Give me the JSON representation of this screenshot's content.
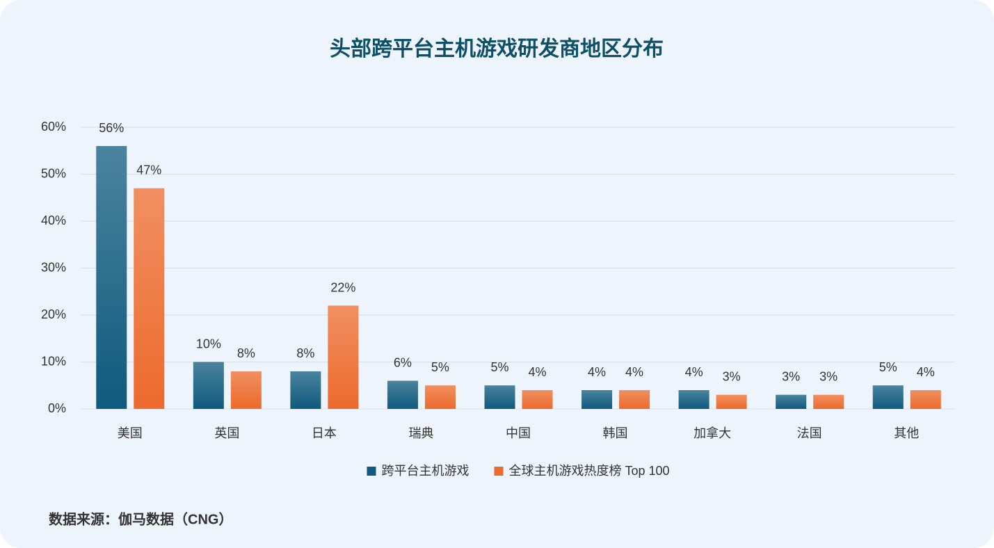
{
  "chart_data": {
    "type": "bar",
    "title": "头部跨平台主机游戏研发商地区分布",
    "categories": [
      "美国",
      "英国",
      "日本",
      "瑞典",
      "中国",
      "韩国",
      "加拿大",
      "法国",
      "其他"
    ],
    "series": [
      {
        "name": "跨平台主机游戏",
        "color": "#0f5a7e",
        "values": [
          56,
          10,
          8,
          6,
          5,
          4,
          4,
          3,
          5
        ],
        "value_labels": [
          "56%",
          "10%",
          "8%",
          "6%",
          "5%",
          "4%",
          "4%",
          "3%",
          "5%"
        ]
      },
      {
        "name": "全球主机游戏热度榜 Top 100",
        "color": "#ec6a2c",
        "values": [
          47,
          8,
          22,
          5,
          4,
          4,
          3,
          3,
          4
        ],
        "value_labels": [
          "47%",
          "8%",
          "22%",
          "5%",
          "4%",
          "4%",
          "3%",
          "3%",
          "4%"
        ]
      }
    ],
    "ylim": [
      0,
      60
    ],
    "yticks": [
      {
        "value": 0,
        "label": "0%"
      },
      {
        "value": 10,
        "label": "10%"
      },
      {
        "value": 20,
        "label": "20%"
      },
      {
        "value": 30,
        "label": "30%"
      },
      {
        "value": 40,
        "label": "40%"
      },
      {
        "value": 50,
        "label": "50%"
      },
      {
        "value": 60,
        "label": "60%"
      }
    ],
    "grid": true,
    "legend": "bottom",
    "source": "数据来源：伽马数据（CNG）"
  }
}
